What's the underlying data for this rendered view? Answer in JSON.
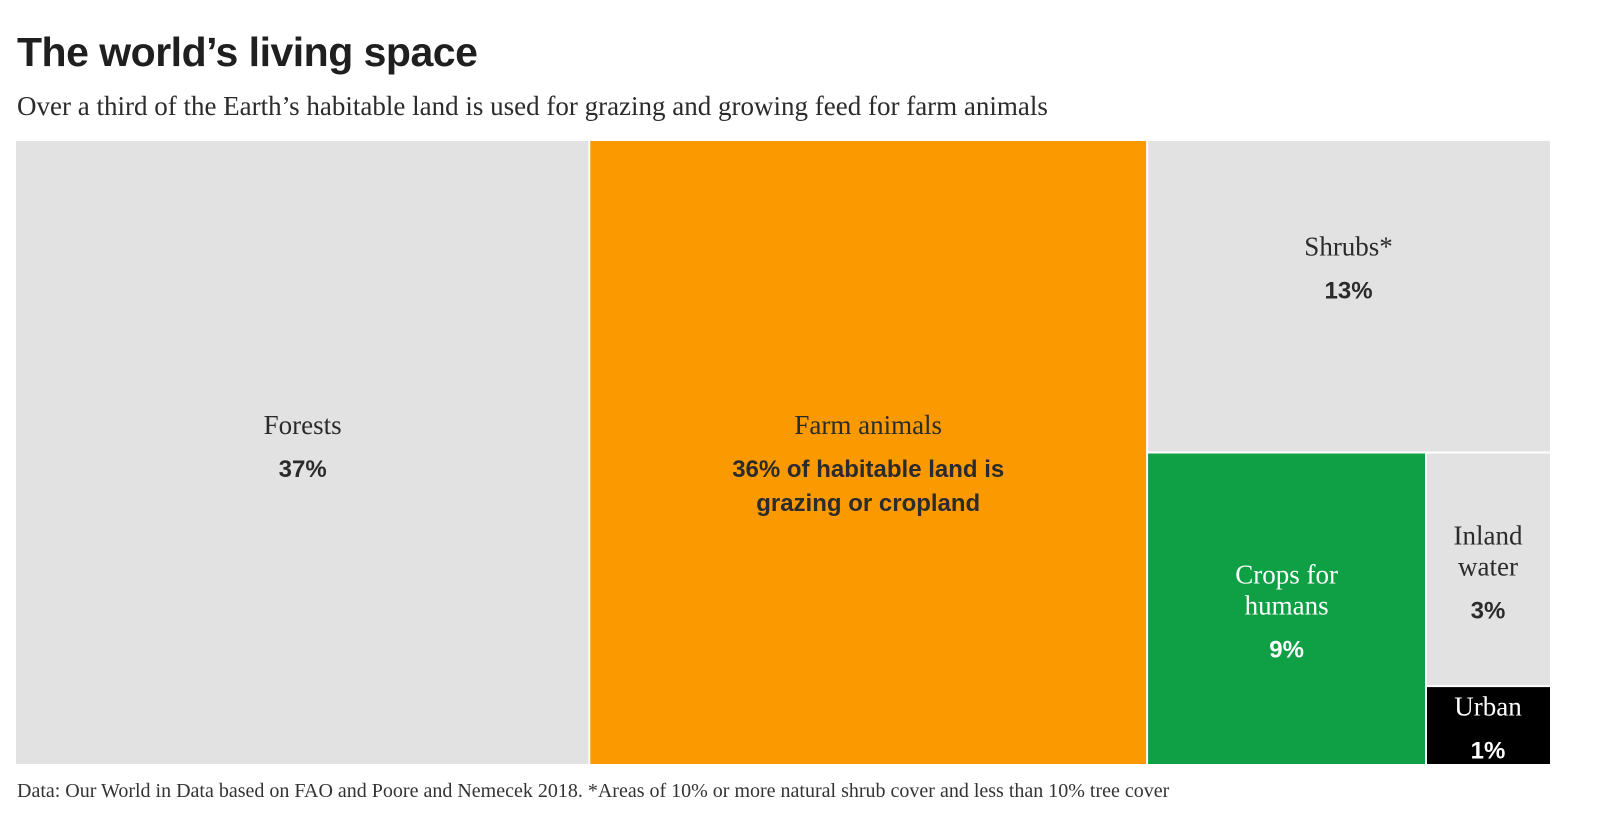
{
  "title": "The world’s living space",
  "subtitle": "Over a third of the Earth’s habitable land is used for grazing and growing feed for farm animals",
  "source": "Data: Our World in Data based on FAO and Poore and Nemecek 2018. *Areas of 10% or more natural shrub cover and less than 10% tree cover",
  "chart_data": {
    "type": "treemap",
    "title": "The world’s living space",
    "items": [
      {
        "name": "Forests",
        "value": 37,
        "value_label": "37%",
        "color": "#e2e2e2",
        "text_color": "#2b2b2b"
      },
      {
        "name": "Farm animals",
        "value": 36,
        "value_label": "36% of habitable land is grazing or cropland",
        "color": "#fa9a00",
        "text_color": "#2b2b2b"
      },
      {
        "name": "Shrubs*",
        "value": 13,
        "value_label": "13%",
        "color": "#e2e2e2",
        "text_color": "#2b2b2b"
      },
      {
        "name": "Crops for humans",
        "value": 9,
        "value_label": "9%",
        "color": "#0fa045",
        "text_color": "#ffffff"
      },
      {
        "name": "Inland water",
        "value": 3,
        "value_label": "3%",
        "color": "#e2e2e2",
        "text_color": "#2b2b2b"
      },
      {
        "name": "Urban",
        "value": 1,
        "value_label": "1%",
        "color": "#000000",
        "text_color": "#ffffff"
      }
    ]
  }
}
